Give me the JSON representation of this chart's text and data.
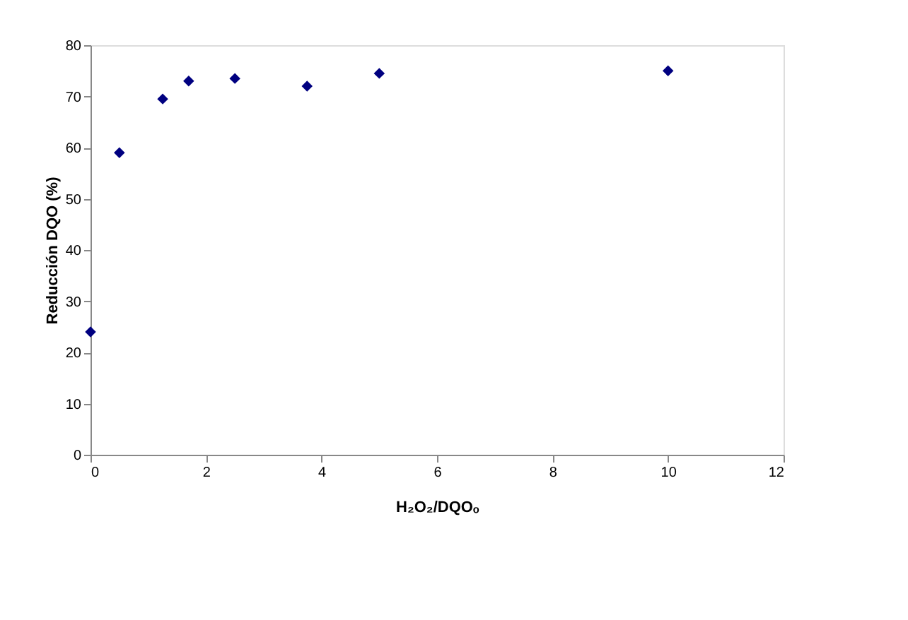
{
  "chart_data": {
    "type": "scatter",
    "xlabel": "H₂O₂/DQOₒ",
    "ylabel": "Reducción DQO (%)",
    "x": [
      0,
      0.5,
      1.25,
      1.7,
      2.5,
      3.75,
      5,
      10
    ],
    "series": [
      {
        "color": "#000080",
        "values": [
          24,
          59,
          69.5,
          73,
          73.5,
          72,
          74.5,
          75
        ]
      }
    ],
    "xlim": [
      0,
      12
    ],
    "xticks": [
      0,
      2,
      4,
      6,
      8,
      10,
      12
    ],
    "ylim": [
      0,
      80
    ],
    "yticks": [
      0,
      10,
      20,
      30,
      40,
      50,
      60,
      70,
      80
    ],
    "marker": "diamond",
    "grid": false
  }
}
